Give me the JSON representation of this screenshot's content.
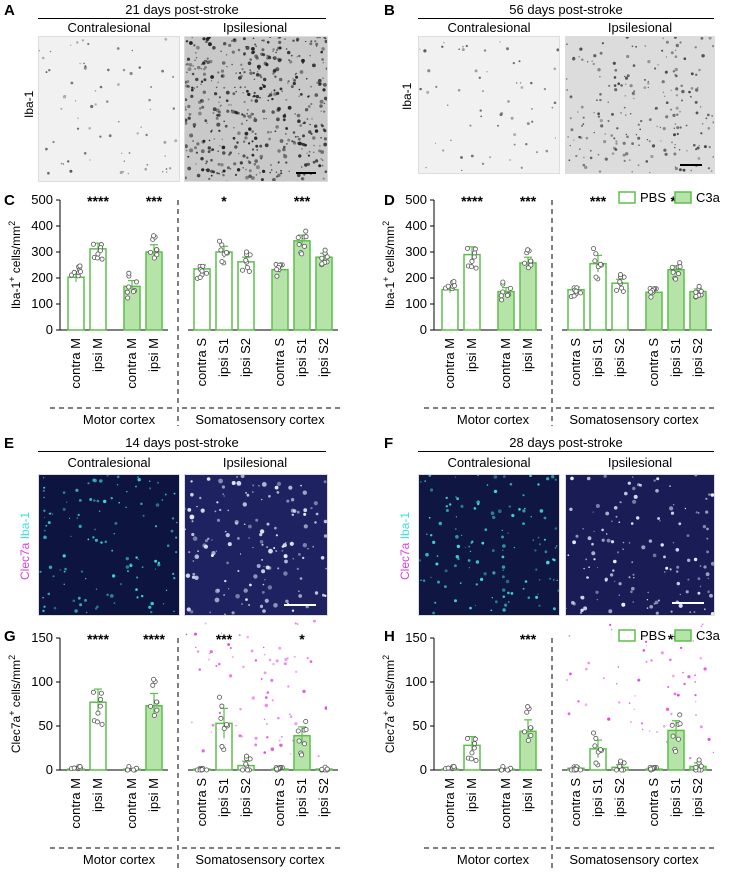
{
  "panels": {
    "A": {
      "letter": "A",
      "title": "21 days post-stroke",
      "left": "Contralesional",
      "right": "Ipsilesional",
      "ylabel": "Iba-1"
    },
    "B": {
      "letter": "B",
      "title": "56 days post-stroke",
      "left": "Contralesional",
      "right": "Ipsilesional",
      "ylabel": "Iba-1"
    },
    "E": {
      "letter": "E",
      "title": "14 days post-stroke",
      "left": "Contralesional",
      "right": "Ipsilesional",
      "ylabel1": "Clec7a",
      "ylabel2": "Iba-1"
    },
    "F": {
      "letter": "F",
      "title": "28 days post-stroke",
      "left": "Contralesional",
      "right": "Ipsilesional",
      "ylabel1": "Clec7a",
      "ylabel2": "Iba-1"
    }
  },
  "colors": {
    "green": "#5bbf4a",
    "fill": "#b6e3a8",
    "cyan": "#40e0e0",
    "magenta": "#e040e0"
  },
  "legend": {
    "pbs": "PBS",
    "c3a": "C3a"
  },
  "chart_data": [
    {
      "id": "C",
      "type": "bar",
      "ylabel": "Iba-1+ cells/mm2",
      "ylim": [
        0,
        500
      ],
      "yticks": [
        0,
        100,
        200,
        300,
        400,
        500
      ],
      "categories": [
        "contra M",
        "ipsi M",
        "contra M",
        "ipsi M",
        "contra S",
        "ipsi S1",
        "ipsi S2",
        "contra S",
        "ipsi S1",
        "ipsi S2"
      ],
      "values": [
        203,
        312,
        168,
        300,
        235,
        300,
        262,
        232,
        343,
        280
      ],
      "errors": [
        18,
        22,
        22,
        28,
        15,
        22,
        18,
        12,
        22,
        15
      ],
      "filled": [
        false,
        false,
        true,
        true,
        false,
        false,
        false,
        true,
        true,
        true
      ],
      "stars": [
        "",
        "****",
        "",
        "***",
        "",
        "*",
        "",
        "",
        "***",
        ""
      ],
      "groups": [
        "Motor cortex",
        "Somatosensory cortex"
      ]
    },
    {
      "id": "D",
      "type": "bar",
      "ylabel": "Iba-1+ cells/mm2",
      "ylim": [
        0,
        500
      ],
      "yticks": [
        0,
        100,
        200,
        300,
        400,
        500
      ],
      "categories": [
        "contra M",
        "ipsi M",
        "contra M",
        "ipsi M",
        "contra S",
        "ipsi S1",
        "ipsi S2",
        "contra S",
        "ipsi S1",
        "ipsi S2"
      ],
      "values": [
        155,
        290,
        148,
        258,
        155,
        255,
        180,
        145,
        232,
        148
      ],
      "errors": [
        12,
        30,
        15,
        22,
        10,
        32,
        15,
        8,
        15,
        10
      ],
      "filled": [
        false,
        false,
        true,
        true,
        false,
        false,
        false,
        true,
        true,
        true
      ],
      "stars": [
        "",
        "****",
        "",
        "***",
        "",
        "***",
        "",
        "",
        "**",
        ""
      ],
      "groups": [
        "Motor cortex",
        "Somatosensory cortex"
      ],
      "legend": [
        "PBS",
        "C3a"
      ]
    },
    {
      "id": "G",
      "type": "bar",
      "ylabel": "Clec7a+ cells/mm2",
      "ylim": [
        0,
        150
      ],
      "yticks": [
        0,
        50,
        100,
        150
      ],
      "categories": [
        "contra M",
        "ipsi M",
        "contra M",
        "ipsi M",
        "contra S",
        "ipsi S1",
        "ipsi S2",
        "contra S",
        "ipsi S1",
        "ipsi S2"
      ],
      "values": [
        1,
        77,
        1,
        73,
        1,
        53,
        5,
        1,
        39,
        1
      ],
      "errors": [
        0.5,
        15,
        0.5,
        14,
        0.5,
        17,
        5,
        0.5,
        10,
        0.5
      ],
      "filled": [
        false,
        false,
        true,
        true,
        false,
        false,
        false,
        true,
        true,
        true
      ],
      "stars": [
        "",
        "****",
        "",
        "****",
        "",
        "***",
        "",
        "",
        "*",
        ""
      ],
      "groups": [
        "Motor cortex",
        "Somatosensory cortex"
      ]
    },
    {
      "id": "H",
      "type": "bar",
      "ylabel": "Clec7a+ cells/mm2",
      "ylim": [
        0,
        150
      ],
      "yticks": [
        0,
        50,
        100,
        150
      ],
      "categories": [
        "contra M",
        "ipsi M",
        "contra M",
        "ipsi M",
        "contra S",
        "ipsi S1",
        "ipsi S2",
        "contra S",
        "ipsi S1",
        "ipsi S2"
      ],
      "values": [
        1,
        28,
        1,
        44,
        2,
        24,
        3,
        1,
        45,
        4
      ],
      "errors": [
        0.5,
        10,
        0.5,
        13,
        2,
        10,
        3,
        0.5,
        11,
        4
      ],
      "filled": [
        false,
        false,
        true,
        true,
        false,
        false,
        false,
        true,
        true,
        true
      ],
      "stars": [
        "",
        "",
        "",
        "***",
        "",
        "",
        "",
        "",
        "***",
        ""
      ],
      "groups": [
        "Motor cortex",
        "Somatosensory cortex"
      ],
      "legend": [
        "PBS",
        "C3a"
      ]
    }
  ]
}
